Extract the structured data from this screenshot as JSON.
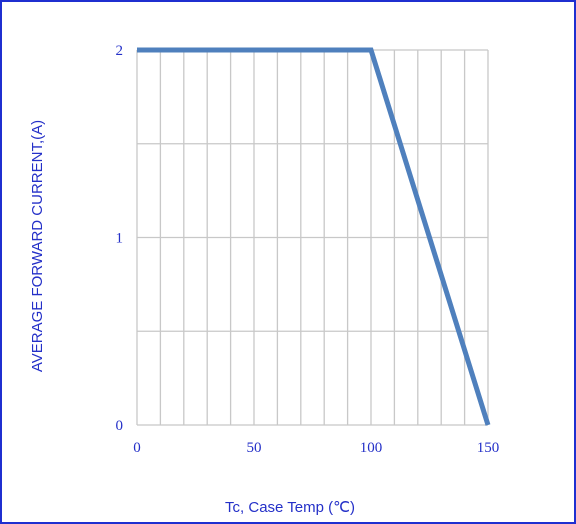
{
  "chart_data": {
    "type": "line",
    "xlabel": "Tc, Case Temp (℃)",
    "ylabel": "AVERAGE FORWARD CURRENT,(A)",
    "xlim": [
      0,
      150
    ],
    "ylim": [
      0,
      2
    ],
    "x_ticks": [
      "0",
      "50",
      "100",
      "150"
    ],
    "y_ticks": [
      "0",
      "1",
      "2"
    ],
    "x_minor_step": 10,
    "y_minor_step": 0.5,
    "grid": true,
    "series": [
      {
        "x": [
          0,
          100,
          150
        ],
        "y": [
          2,
          2,
          0
        ]
      }
    ],
    "colors": {
      "line": "#4f80bd",
      "grid": "#c8c8c8",
      "text": "#2430c8",
      "border": "#1f2fd0"
    }
  }
}
